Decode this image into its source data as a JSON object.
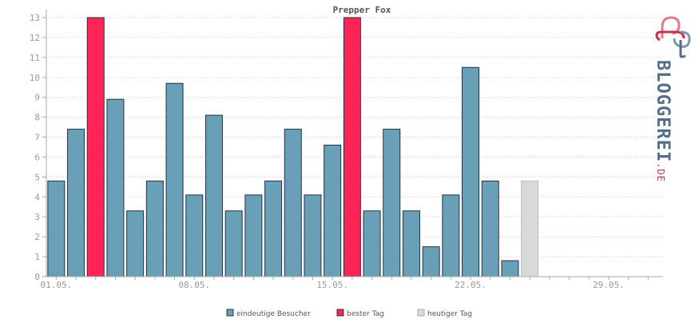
{
  "chart_data": {
    "type": "bar",
    "title": "Prepper Fox",
    "ylim": [
      0,
      13
    ],
    "yticks": [
      0,
      1,
      2,
      3,
      4,
      5,
      6,
      7,
      8,
      9,
      10,
      11,
      12,
      13
    ],
    "grid": true,
    "legend_placement": "bottom",
    "days": 31,
    "xtick_labels": [
      {
        "day": 1,
        "label": "01.05."
      },
      {
        "day": 8,
        "label": "08.05."
      },
      {
        "day": 15,
        "label": "15.05."
      },
      {
        "day": 22,
        "label": "22.05."
      },
      {
        "day": 29,
        "label": "29.05."
      }
    ],
    "values": [
      4.8,
      7.4,
      13,
      8.9,
      3.3,
      4.8,
      9.7,
      4.1,
      8.1,
      3.3,
      4.1,
      4.8,
      7.4,
      4.1,
      6.6,
      13,
      3.3,
      7.4,
      3.3,
      1.5,
      4.1,
      10.5,
      4.8,
      0.8,
      4.8
    ],
    "bar_kinds": [
      "visitor",
      "visitor",
      "best",
      "visitor",
      "visitor",
      "visitor",
      "visitor",
      "visitor",
      "visitor",
      "visitor",
      "visitor",
      "visitor",
      "visitor",
      "visitor",
      "visitor",
      "best",
      "visitor",
      "visitor",
      "visitor",
      "visitor",
      "visitor",
      "visitor",
      "visitor",
      "visitor",
      "today"
    ],
    "legend": [
      {
        "key": "visitor",
        "label": "eindeutige Besucher"
      },
      {
        "key": "best",
        "label": "bester Tag"
      },
      {
        "key": "today",
        "label": "heutiger Tag"
      }
    ],
    "colors": {
      "visitor": "#6a9fb8",
      "best": "#ff2457",
      "today": "#d9d9d9",
      "grid": "#cccccc",
      "axis": "#aaaaaa"
    }
  },
  "logo": {
    "text": "BLOGGEREI",
    "suffix": ".DE",
    "icon": "bloggerei-logo-icon",
    "color_dark": "#546e8a",
    "color_red": "#c8304e"
  }
}
